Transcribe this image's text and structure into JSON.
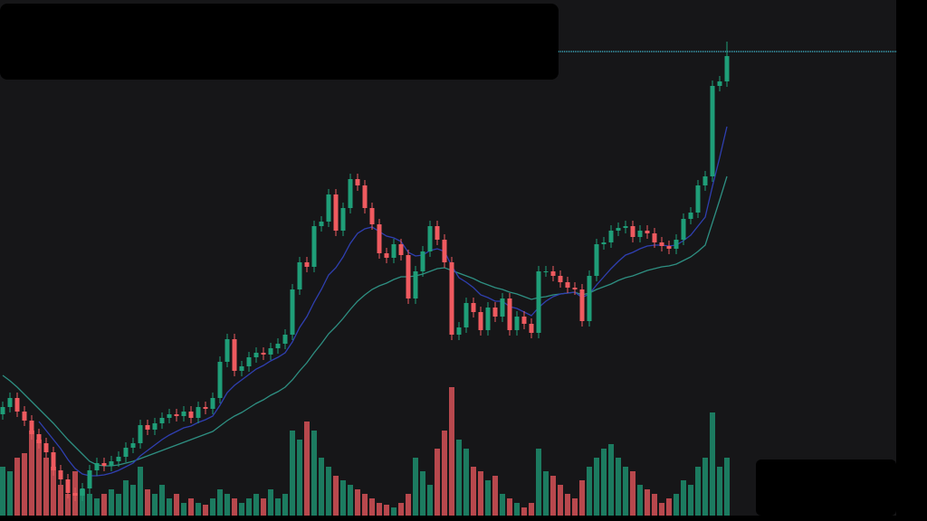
{
  "chart_data": {
    "type": "candlestick",
    "ylim": [
      0,
      576
    ],
    "volume_ylim": [
      0,
      576
    ],
    "up_color": "#1f9e78",
    "down_color": "#ef5a5f",
    "open": [
      118,
      126,
      136,
      121,
      111,
      96,
      86,
      76,
      56,
      46,
      31,
      28,
      36,
      56,
      64,
      61,
      66,
      71,
      81,
      86,
      106,
      101,
      108,
      114,
      118,
      116,
      121,
      114,
      126,
      124,
      136,
      176,
      201,
      166,
      171,
      181,
      186,
      184,
      191,
      196,
      206,
      256,
      286,
      281,
      326,
      331,
      361,
      321,
      346,
      378,
      371,
      346,
      328,
      296,
      291,
      306,
      294,
      246,
      276,
      298,
      326,
      311,
      286,
      206,
      214,
      241,
      231,
      211,
      236,
      226,
      246,
      211,
      226,
      218,
      208,
      276,
      276,
      271,
      264,
      258,
      256,
      221,
      271,
      306,
      308,
      321,
      324,
      326,
      314,
      321,
      318,
      308,
      304,
      301,
      311,
      334,
      341,
      371,
      381,
      481,
      486
    ],
    "high": [
      132,
      142,
      142,
      127,
      117,
      102,
      92,
      82,
      62,
      52,
      37,
      42,
      62,
      70,
      70,
      72,
      77,
      87,
      92,
      112,
      112,
      114,
      120,
      124,
      124,
      127,
      127,
      132,
      132,
      142,
      182,
      207,
      207,
      177,
      187,
      192,
      192,
      197,
      202,
      212,
      262,
      292,
      292,
      332,
      337,
      367,
      367,
      352,
      384,
      384,
      377,
      352,
      334,
      302,
      312,
      312,
      300,
      282,
      304,
      332,
      332,
      317,
      292,
      220,
      247,
      247,
      237,
      242,
      242,
      252,
      252,
      232,
      232,
      224,
      282,
      282,
      282,
      277,
      270,
      264,
      262,
      277,
      312,
      314,
      327,
      330,
      332,
      332,
      327,
      327,
      324,
      314,
      310,
      317,
      340,
      347,
      377,
      387,
      487,
      492,
      530
    ],
    "low": [
      112,
      120,
      115,
      105,
      90,
      80,
      70,
      50,
      40,
      25,
      22,
      22,
      30,
      50,
      55,
      55,
      60,
      65,
      75,
      80,
      95,
      95,
      102,
      108,
      110,
      110,
      108,
      108,
      118,
      118,
      130,
      170,
      160,
      160,
      165,
      175,
      178,
      178,
      185,
      190,
      200,
      250,
      275,
      275,
      320,
      325,
      315,
      315,
      340,
      365,
      340,
      322,
      290,
      285,
      285,
      288,
      240,
      240,
      270,
      292,
      305,
      280,
      200,
      200,
      208,
      225,
      205,
      205,
      220,
      220,
      205,
      205,
      212,
      202,
      202,
      270,
      265,
      258,
      252,
      250,
      215,
      215,
      265,
      300,
      302,
      315,
      318,
      308,
      308,
      312,
      302,
      298,
      295,
      295,
      305,
      328,
      335,
      365,
      375,
      475,
      480
    ],
    "close": [
      126,
      136,
      121,
      111,
      96,
      86,
      76,
      56,
      46,
      31,
      28,
      36,
      56,
      64,
      61,
      66,
      71,
      81,
      86,
      106,
      101,
      108,
      114,
      118,
      116,
      121,
      114,
      126,
      124,
      136,
      176,
      201,
      166,
      171,
      181,
      186,
      184,
      191,
      196,
      206,
      256,
      286,
      281,
      326,
      331,
      361,
      321,
      346,
      378,
      371,
      346,
      328,
      296,
      291,
      306,
      294,
      246,
      276,
      298,
      326,
      311,
      286,
      206,
      214,
      241,
      231,
      211,
      236,
      226,
      246,
      211,
      226,
      218,
      208,
      276,
      276,
      271,
      264,
      258,
      256,
      221,
      271,
      306,
      308,
      321,
      324,
      326,
      314,
      321,
      318,
      308,
      304,
      301,
      311,
      334,
      341,
      371,
      381,
      481,
      486,
      514
    ],
    "volume": [
      60,
      55,
      70,
      75,
      100,
      90,
      70,
      60,
      40,
      30,
      55,
      35,
      30,
      25,
      30,
      35,
      30,
      45,
      40,
      60,
      35,
      30,
      40,
      25,
      30,
      20,
      25,
      20,
      18,
      25,
      35,
      30,
      25,
      20,
      25,
      30,
      25,
      35,
      25,
      30,
      100,
      90,
      110,
      100,
      70,
      60,
      50,
      45,
      40,
      35,
      30,
      25,
      20,
      18,
      15,
      20,
      30,
      70,
      55,
      40,
      80,
      100,
      148,
      90,
      80,
      60,
      55,
      45,
      50,
      30,
      25,
      20,
      15,
      20,
      80,
      55,
      50,
      40,
      30,
      25,
      45,
      60,
      70,
      80,
      85,
      70,
      60,
      55,
      40,
      35,
      30,
      20,
      25,
      30,
      45,
      40,
      60,
      70,
      120,
      60,
      70
    ],
    "ma_fast": {
      "color": "#2f3fb0",
      "values": [
        null,
        null,
        null,
        null,
        null,
        110,
        100,
        90,
        80,
        68,
        58,
        52,
        50,
        50,
        51,
        53,
        56,
        60,
        64,
        72,
        78,
        84,
        90,
        95,
        99,
        103,
        105,
        109,
        112,
        116,
        128,
        142,
        150,
        156,
        162,
        168,
        172,
        177,
        181,
        186,
        198,
        214,
        226,
        242,
        256,
        272,
        280,
        292,
        307,
        318,
        323,
        325,
        320,
        315,
        313,
        309,
        297,
        293,
        294,
        299,
        301,
        298,
        282,
        269,
        264,
        258,
        250,
        247,
        243,
        243,
        237,
        235,
        231,
        227,
        236,
        243,
        248,
        251,
        252,
        253,
        247,
        251,
        261,
        270,
        279,
        287,
        294,
        297,
        301,
        304,
        305,
        305,
        304,
        305,
        310,
        316,
        326,
        336,
        370,
        402,
        436
      ]
    },
    "ma_slow": {
      "color": "#2e8f82",
      "values": [
        161,
        155,
        148,
        140,
        132,
        124,
        116,
        108,
        99,
        90,
        82,
        74,
        66,
        62,
        61,
        61,
        62,
        64,
        66,
        69,
        72,
        75,
        78,
        81,
        84,
        87,
        90,
        93,
        96,
        99,
        105,
        111,
        116,
        120,
        125,
        130,
        134,
        139,
        143,
        148,
        156,
        166,
        175,
        186,
        196,
        207,
        215,
        224,
        234,
        243,
        250,
        256,
        260,
        263,
        267,
        270,
        270,
        271,
        273,
        276,
        279,
        280,
        277,
        274,
        271,
        268,
        264,
        261,
        258,
        256,
        253,
        251,
        248,
        245,
        247,
        248,
        250,
        251,
        252,
        253,
        250,
        252,
        256,
        259,
        262,
        266,
        269,
        271,
        274,
        277,
        279,
        281,
        282,
        284,
        288,
        292,
        298,
        305,
        330,
        355,
        381
      ]
    },
    "price_line": {
      "value": 519,
      "color": "#3fb3c8"
    }
  }
}
